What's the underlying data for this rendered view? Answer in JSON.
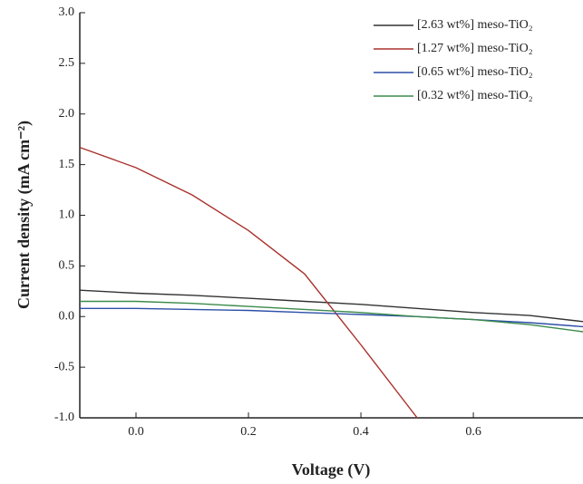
{
  "chart_data": {
    "type": "line",
    "xlabel": "Voltage (V)",
    "ylabel": "Current density (mA cm⁻²)",
    "x": [
      -0.1,
      0.0,
      0.1,
      0.2,
      0.3,
      0.4,
      0.5,
      0.6,
      0.7,
      0.795
    ],
    "xlim": [
      -0.1,
      0.795
    ],
    "xticks": [
      {
        "value": 0,
        "label": "0.0"
      },
      0.2,
      0.4,
      0.6
    ],
    "ylim": [
      -1,
      3
    ],
    "yticks": [
      {
        "value": -1,
        "label": "-1.0"
      },
      -0.5,
      {
        "value": 0,
        "label": "0.0"
      },
      0.5,
      {
        "value": 1,
        "label": "1.0"
      },
      1.5,
      {
        "value": 2,
        "label": "2.0"
      },
      2.5,
      {
        "value": 3,
        "label": "3.0"
      }
    ],
    "legend": "top-right",
    "series": [
      {
        "name": "[2.63 wt%] meso-TiO₂",
        "color": "#333333",
        "values": [
          0.26,
          0.23,
          0.21,
          0.18,
          0.15,
          0.12,
          0.08,
          0.04,
          0.01,
          -0.05
        ]
      },
      {
        "name": "[1.27 wt%] meso-TiO₂",
        "color": "#a8322d",
        "values": [
          1.67,
          1.47,
          1.2,
          0.85,
          0.42,
          -0.28,
          -1.0,
          null,
          null,
          null
        ]
      },
      {
        "name": "[0.65 wt%] meso-TiO₂",
        "color": "#2d4fa8",
        "values": [
          0.08,
          0.08,
          0.07,
          0.06,
          0.04,
          0.02,
          0.0,
          -0.03,
          -0.06,
          -0.1
        ]
      },
      {
        "name": "[0.32 wt%] meso-TiO₂",
        "color": "#3b8a4a",
        "values": [
          0.15,
          0.15,
          0.13,
          0.1,
          0.07,
          0.04,
          0.0,
          -0.03,
          -0.08,
          -0.15
        ]
      }
    ]
  }
}
